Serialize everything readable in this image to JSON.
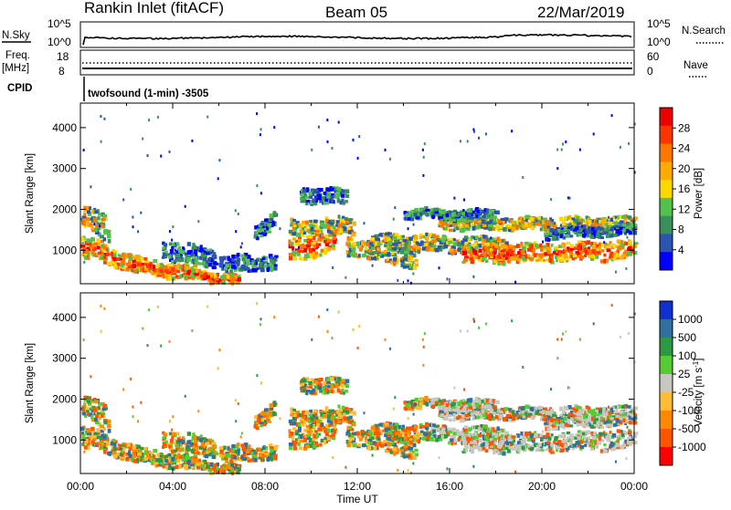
{
  "header": {
    "station": "Rankin Inlet (fitACF)",
    "beam": "Beam 05",
    "date": "22/Mar/2019"
  },
  "top_panel": {
    "left_label": "N.Sky",
    "right_label": "N.Search",
    "left_ticks": [
      "10^5",
      "10^0"
    ],
    "right_ticks": [
      "10^5",
      "10^0"
    ]
  },
  "freq_panel": {
    "left_label_1": "Freq.",
    "left_label_2": "[MHz]",
    "left_ticks": [
      "18",
      "8"
    ],
    "right_ticks": [
      "60",
      "0"
    ],
    "right_label": "Nave",
    "cpid_label": "CPID",
    "cpid_text": "twofsound (1-min) -3505"
  },
  "colors": {
    "power": [
      "#0000ff",
      "#2b55b0",
      "#3a8f5a",
      "#52c24c",
      "#ffd700",
      "#ffaa00",
      "#ff7700",
      "#ff3300",
      "#ee0000"
    ],
    "velocity": [
      "#ff0000",
      "#ff5500",
      "#ff8800",
      "#ffbb33",
      "#c8c8c0",
      "#55cc33",
      "#2e9944",
      "#3070a0",
      "#1030d0"
    ]
  },
  "chart_data": [
    {
      "type": "heatmap",
      "title": "",
      "xlabel": "Time UT",
      "ylabel": "Slant Range [km]",
      "xlim": [
        "00:00",
        "24:00"
      ],
      "ylim": [
        180,
        4600
      ],
      "x_ticks": [
        "00:00",
        "04:00",
        "08:00",
        "12:00",
        "16:00",
        "20:00",
        "00:00"
      ],
      "y_ticks": [
        "1000",
        "2000",
        "3000",
        "4000"
      ],
      "colorbar": {
        "label": "Power [dB]",
        "ticks": [
          "4",
          "8",
          "12",
          "16",
          "20",
          "24",
          "28"
        ],
        "range": [
          0,
          30
        ]
      }
    },
    {
      "type": "heatmap",
      "title": "",
      "xlabel": "Time UT",
      "ylabel": "Slant Range [km]",
      "xlim": [
        "00:00",
        "24:00"
      ],
      "ylim": [
        180,
        4600
      ],
      "x_ticks": [
        "00:00",
        "04:00",
        "08:00",
        "12:00",
        "16:00",
        "20:00",
        "00:00"
      ],
      "y_ticks": [
        "1000",
        "2000",
        "3000",
        "4000"
      ],
      "colorbar": {
        "label": "Velocity [m s",
        "label_sup": "-1",
        "label_end": "]",
        "ticks": [
          "1000",
          "500",
          "100",
          "25",
          "-25",
          "-100",
          "-500",
          "-1000"
        ],
        "range": [
          -1000,
          1000
        ]
      }
    }
  ]
}
